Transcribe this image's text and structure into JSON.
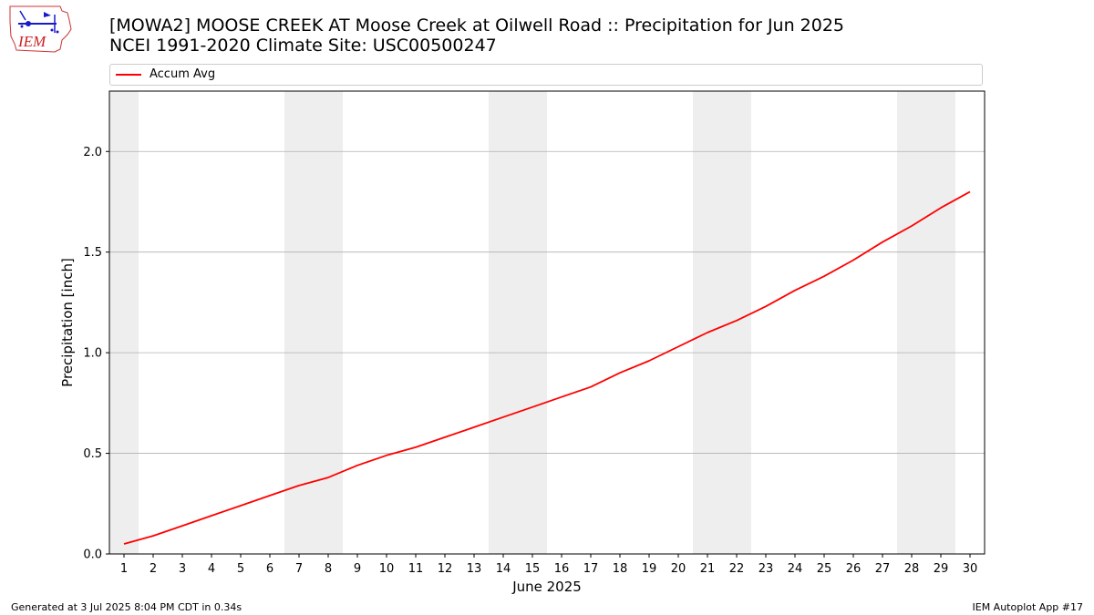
{
  "header": {
    "title_line1": "[MOWA2] MOOSE CREEK  AT Moose Creek at Oilwell Road :: Precipitation for Jun 2025",
    "title_line2": "NCEI 1991-2020 Climate Site: USC00500247",
    "logo_text": "IEM",
    "logo_icon": "iem-logo-icon"
  },
  "footer": {
    "left": "Generated at 3 Jul 2025 8:04 PM CDT in 0.34s",
    "right": "IEM Autoplot App #17"
  },
  "colors": {
    "line": "#ff0000",
    "weekend_band": "#eeeeee",
    "grid": "#b0b0b0"
  },
  "chart_data": {
    "type": "line",
    "xlabel": "June 2025",
    "ylabel": "Precipitation [inch]",
    "xlim": [
      0.5,
      30.5
    ],
    "ylim": [
      0,
      2.3
    ],
    "x_ticks": [
      1,
      2,
      3,
      4,
      5,
      6,
      7,
      8,
      9,
      10,
      11,
      12,
      13,
      14,
      15,
      16,
      17,
      18,
      19,
      20,
      21,
      22,
      23,
      24,
      25,
      26,
      27,
      28,
      29,
      30
    ],
    "y_ticks": [
      0.0,
      0.5,
      1.0,
      1.5,
      2.0
    ],
    "y_tick_labels": [
      "0.0",
      "0.5",
      "1.0",
      "1.5",
      "2.0"
    ],
    "grid": "y",
    "legend_position": "top",
    "shaded_days": [
      [
        0.5,
        1.5
      ],
      [
        6.5,
        8.5
      ],
      [
        13.5,
        15.5
      ],
      [
        20.5,
        22.5
      ],
      [
        27.5,
        29.5
      ]
    ],
    "series": [
      {
        "name": "Accum Avg",
        "color": "#ff0000",
        "x": [
          1,
          2,
          3,
          4,
          5,
          6,
          7,
          8,
          9,
          10,
          11,
          12,
          13,
          14,
          15,
          16,
          17,
          18,
          19,
          20,
          21,
          22,
          23,
          24,
          25,
          26,
          27,
          28,
          29,
          30
        ],
        "values": [
          0.05,
          0.09,
          0.14,
          0.19,
          0.24,
          0.29,
          0.34,
          0.38,
          0.44,
          0.49,
          0.53,
          0.58,
          0.63,
          0.68,
          0.73,
          0.78,
          0.83,
          0.9,
          0.96,
          1.03,
          1.1,
          1.16,
          1.23,
          1.31,
          1.38,
          1.46,
          1.55,
          1.63,
          1.72,
          1.8
        ]
      }
    ]
  }
}
